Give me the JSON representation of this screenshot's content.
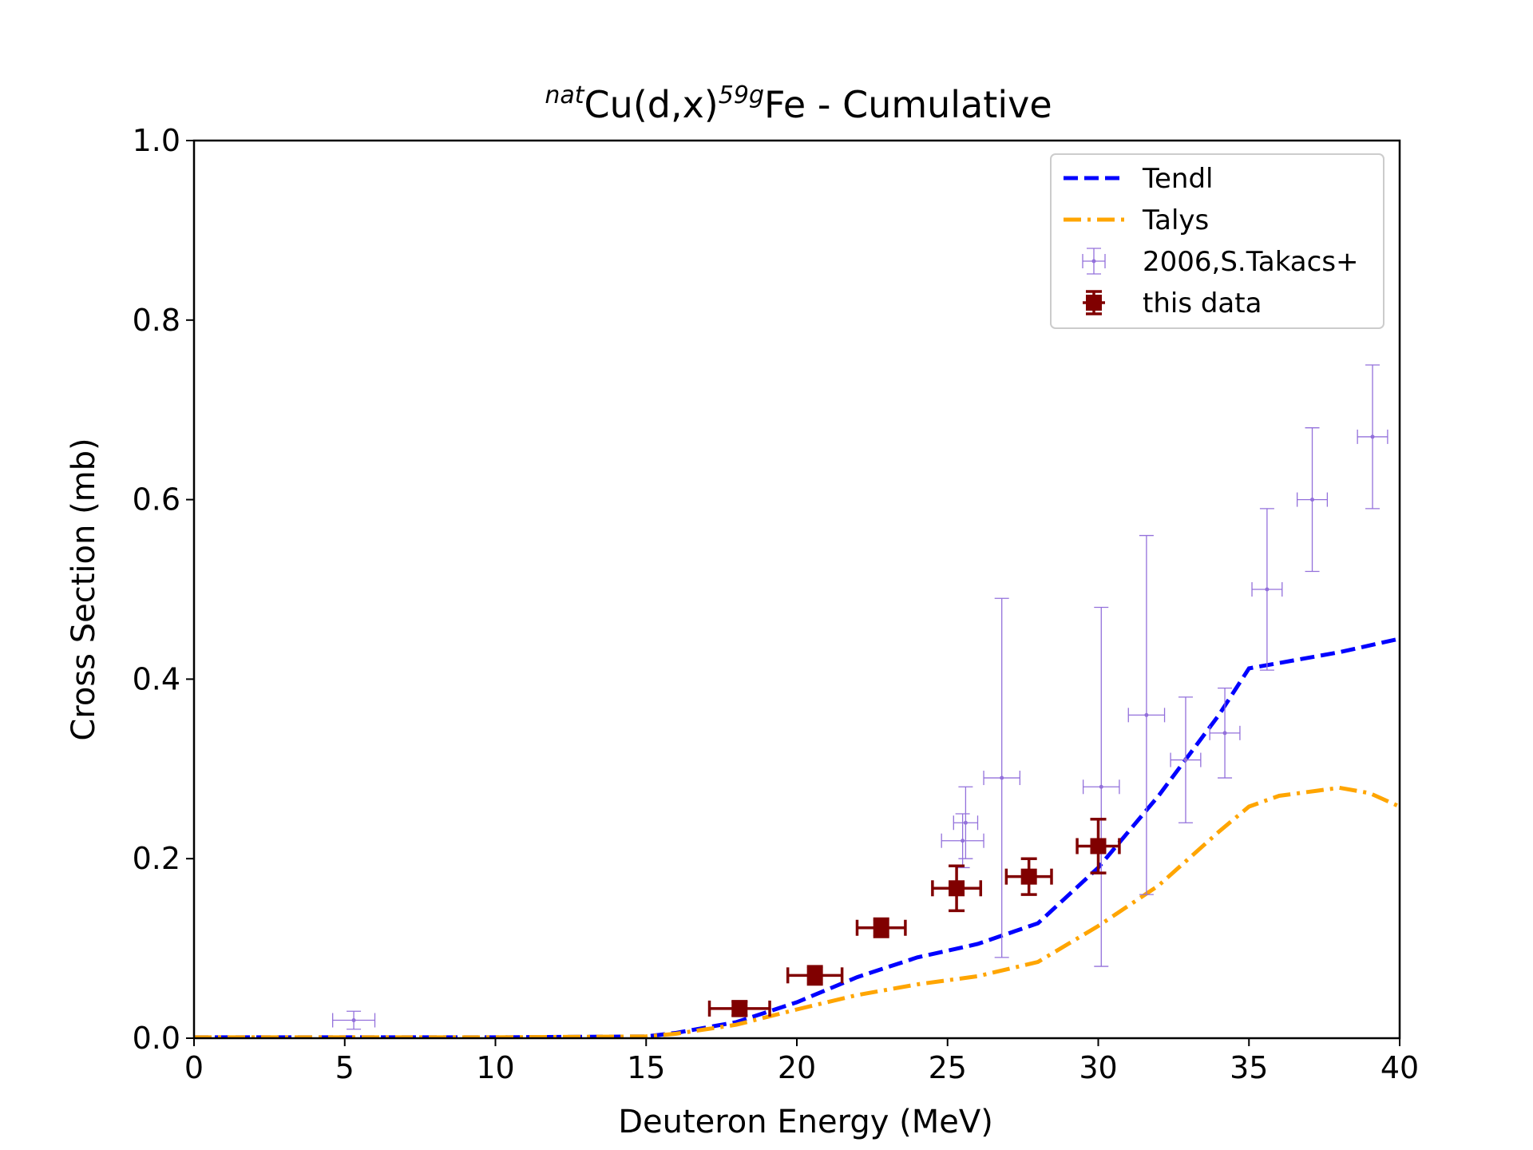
{
  "chart_data": {
    "type": "line",
    "title_parts": {
      "sup1": "nat",
      "main1": "Cu(d,x)",
      "sup2": "59g",
      "main2": "Fe - Cumulative"
    },
    "xlabel": "Deuteron Energy (MeV)",
    "ylabel": "Cross Section (mb)",
    "xlim": [
      0,
      40
    ],
    "ylim": [
      0,
      1.0
    ],
    "xticks": [
      0,
      5,
      10,
      15,
      20,
      25,
      30,
      35,
      40
    ],
    "xtick_labels": [
      "0",
      "5",
      "10",
      "15",
      "20",
      "25",
      "30",
      "35",
      "40"
    ],
    "yticks": [
      0.0,
      0.2,
      0.4,
      0.6,
      0.8,
      1.0
    ],
    "ytick_labels": [
      "0.0",
      "0.2",
      "0.4",
      "0.6",
      "0.8",
      "1.0"
    ],
    "grid": false,
    "legend_position": "top-right",
    "series": [
      {
        "name": "Tendl",
        "kind": "line",
        "style": "dashed",
        "color": "#0000ff",
        "x": [
          0,
          5,
          10,
          15,
          16,
          18,
          20,
          22,
          24,
          26,
          28,
          30,
          32,
          34,
          35,
          36,
          38,
          40
        ],
        "y": [
          0.001,
          0.001,
          0.001,
          0.002,
          0.006,
          0.018,
          0.04,
          0.068,
          0.09,
          0.105,
          0.128,
          0.19,
          0.27,
          0.36,
          0.412,
          0.418,
          0.43,
          0.445
        ]
      },
      {
        "name": "Talys",
        "kind": "line",
        "style": "dashdot",
        "color": "#ffa500",
        "x": [
          0,
          5,
          10,
          15,
          16,
          18,
          20,
          22,
          24,
          26,
          28,
          30,
          32,
          34,
          35,
          36,
          38,
          39,
          40
        ],
        "y": [
          0.001,
          0.001,
          0.001,
          0.002,
          0.005,
          0.015,
          0.032,
          0.048,
          0.06,
          0.069,
          0.085,
          0.125,
          0.17,
          0.23,
          0.258,
          0.27,
          0.279,
          0.273,
          0.258
        ]
      },
      {
        "name": "2006,S.Takacs+",
        "kind": "errorbar",
        "color": "#9370db",
        "points": [
          {
            "x": 5.3,
            "y": 0.02,
            "xerr": 0.7,
            "yerr": 0.01
          },
          {
            "x": 25.5,
            "y": 0.22,
            "xerr": 0.7,
            "yerr": 0.03
          },
          {
            "x": 25.6,
            "y": 0.24,
            "xerr": 0.4,
            "yerr": 0.04
          },
          {
            "x": 26.8,
            "y": 0.29,
            "xerr": 0.6,
            "yerr": 0.2
          },
          {
            "x": 30.1,
            "y": 0.28,
            "xerr": 0.6,
            "yerr": 0.2
          },
          {
            "x": 31.6,
            "y": 0.36,
            "xerr": 0.6,
            "yerr": 0.2
          },
          {
            "x": 32.9,
            "y": 0.31,
            "xerr": 0.5,
            "yerr": 0.07
          },
          {
            "x": 34.2,
            "y": 0.34,
            "xerr": 0.5,
            "yerr": 0.05
          },
          {
            "x": 35.6,
            "y": 0.5,
            "xerr": 0.5,
            "yerr": 0.09
          },
          {
            "x": 37.1,
            "y": 0.6,
            "xerr": 0.5,
            "yerr": 0.08
          },
          {
            "x": 39.1,
            "y": 0.67,
            "xerr": 0.5,
            "yerr": 0.08
          }
        ]
      },
      {
        "name": "this data",
        "kind": "errorbar",
        "color": "#800000",
        "points": [
          {
            "x": 18.1,
            "y": 0.033,
            "xerr": 1.0,
            "yerr": 0.008
          },
          {
            "x": 20.6,
            "y": 0.07,
            "xerr": 0.9,
            "yerr": 0.01
          },
          {
            "x": 22.8,
            "y": 0.123,
            "xerr": 0.8,
            "yerr": 0.01
          },
          {
            "x": 25.3,
            "y": 0.167,
            "xerr": 0.8,
            "yerr": 0.025
          },
          {
            "x": 27.7,
            "y": 0.18,
            "xerr": 0.75,
            "yerr": 0.02
          },
          {
            "x": 30.0,
            "y": 0.214,
            "xerr": 0.7,
            "yerr": 0.03
          }
        ]
      }
    ]
  }
}
